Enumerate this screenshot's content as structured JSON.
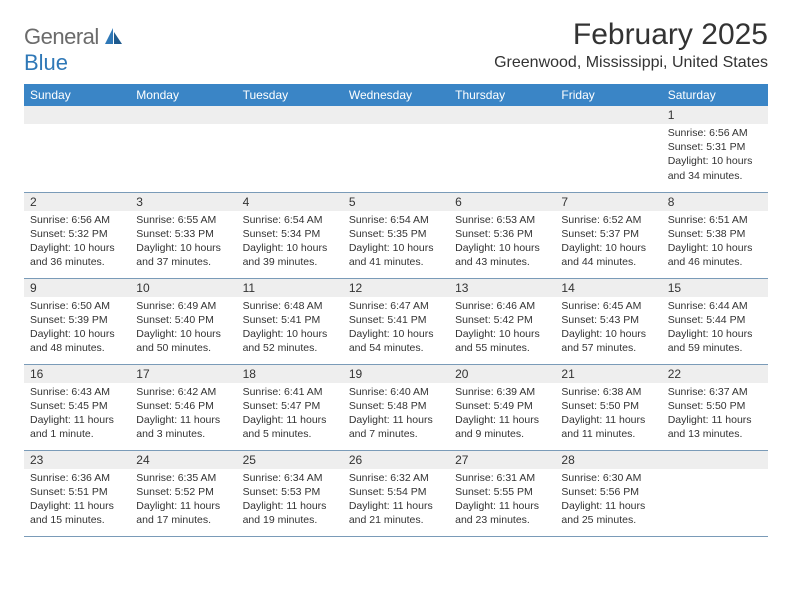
{
  "logo": {
    "part1": "General",
    "part2": "Blue"
  },
  "title": "February 2025",
  "location": "Greenwood, Mississippi, United States",
  "colors": {
    "header_bg": "#3a85c6",
    "header_text": "#ffffff",
    "daynum_bg": "#eeeeee",
    "text": "#333333",
    "week_border": "#7a9bb8",
    "logo_gray": "#6b6b6b",
    "logo_blue": "#2f78b7"
  },
  "day_headers": [
    "Sunday",
    "Monday",
    "Tuesday",
    "Wednesday",
    "Thursday",
    "Friday",
    "Saturday"
  ],
  "weeks": [
    [
      {
        "n": "",
        "sr": "",
        "ss": "",
        "dl": ""
      },
      {
        "n": "",
        "sr": "",
        "ss": "",
        "dl": ""
      },
      {
        "n": "",
        "sr": "",
        "ss": "",
        "dl": ""
      },
      {
        "n": "",
        "sr": "",
        "ss": "",
        "dl": ""
      },
      {
        "n": "",
        "sr": "",
        "ss": "",
        "dl": ""
      },
      {
        "n": "",
        "sr": "",
        "ss": "",
        "dl": ""
      },
      {
        "n": "1",
        "sr": "Sunrise: 6:56 AM",
        "ss": "Sunset: 5:31 PM",
        "dl": "Daylight: 10 hours and 34 minutes."
      }
    ],
    [
      {
        "n": "2",
        "sr": "Sunrise: 6:56 AM",
        "ss": "Sunset: 5:32 PM",
        "dl": "Daylight: 10 hours and 36 minutes."
      },
      {
        "n": "3",
        "sr": "Sunrise: 6:55 AM",
        "ss": "Sunset: 5:33 PM",
        "dl": "Daylight: 10 hours and 37 minutes."
      },
      {
        "n": "4",
        "sr": "Sunrise: 6:54 AM",
        "ss": "Sunset: 5:34 PM",
        "dl": "Daylight: 10 hours and 39 minutes."
      },
      {
        "n": "5",
        "sr": "Sunrise: 6:54 AM",
        "ss": "Sunset: 5:35 PM",
        "dl": "Daylight: 10 hours and 41 minutes."
      },
      {
        "n": "6",
        "sr": "Sunrise: 6:53 AM",
        "ss": "Sunset: 5:36 PM",
        "dl": "Daylight: 10 hours and 43 minutes."
      },
      {
        "n": "7",
        "sr": "Sunrise: 6:52 AM",
        "ss": "Sunset: 5:37 PM",
        "dl": "Daylight: 10 hours and 44 minutes."
      },
      {
        "n": "8",
        "sr": "Sunrise: 6:51 AM",
        "ss": "Sunset: 5:38 PM",
        "dl": "Daylight: 10 hours and 46 minutes."
      }
    ],
    [
      {
        "n": "9",
        "sr": "Sunrise: 6:50 AM",
        "ss": "Sunset: 5:39 PM",
        "dl": "Daylight: 10 hours and 48 minutes."
      },
      {
        "n": "10",
        "sr": "Sunrise: 6:49 AM",
        "ss": "Sunset: 5:40 PM",
        "dl": "Daylight: 10 hours and 50 minutes."
      },
      {
        "n": "11",
        "sr": "Sunrise: 6:48 AM",
        "ss": "Sunset: 5:41 PM",
        "dl": "Daylight: 10 hours and 52 minutes."
      },
      {
        "n": "12",
        "sr": "Sunrise: 6:47 AM",
        "ss": "Sunset: 5:41 PM",
        "dl": "Daylight: 10 hours and 54 minutes."
      },
      {
        "n": "13",
        "sr": "Sunrise: 6:46 AM",
        "ss": "Sunset: 5:42 PM",
        "dl": "Daylight: 10 hours and 55 minutes."
      },
      {
        "n": "14",
        "sr": "Sunrise: 6:45 AM",
        "ss": "Sunset: 5:43 PM",
        "dl": "Daylight: 10 hours and 57 minutes."
      },
      {
        "n": "15",
        "sr": "Sunrise: 6:44 AM",
        "ss": "Sunset: 5:44 PM",
        "dl": "Daylight: 10 hours and 59 minutes."
      }
    ],
    [
      {
        "n": "16",
        "sr": "Sunrise: 6:43 AM",
        "ss": "Sunset: 5:45 PM",
        "dl": "Daylight: 11 hours and 1 minute."
      },
      {
        "n": "17",
        "sr": "Sunrise: 6:42 AM",
        "ss": "Sunset: 5:46 PM",
        "dl": "Daylight: 11 hours and 3 minutes."
      },
      {
        "n": "18",
        "sr": "Sunrise: 6:41 AM",
        "ss": "Sunset: 5:47 PM",
        "dl": "Daylight: 11 hours and 5 minutes."
      },
      {
        "n": "19",
        "sr": "Sunrise: 6:40 AM",
        "ss": "Sunset: 5:48 PM",
        "dl": "Daylight: 11 hours and 7 minutes."
      },
      {
        "n": "20",
        "sr": "Sunrise: 6:39 AM",
        "ss": "Sunset: 5:49 PM",
        "dl": "Daylight: 11 hours and 9 minutes."
      },
      {
        "n": "21",
        "sr": "Sunrise: 6:38 AM",
        "ss": "Sunset: 5:50 PM",
        "dl": "Daylight: 11 hours and 11 minutes."
      },
      {
        "n": "22",
        "sr": "Sunrise: 6:37 AM",
        "ss": "Sunset: 5:50 PM",
        "dl": "Daylight: 11 hours and 13 minutes."
      }
    ],
    [
      {
        "n": "23",
        "sr": "Sunrise: 6:36 AM",
        "ss": "Sunset: 5:51 PM",
        "dl": "Daylight: 11 hours and 15 minutes."
      },
      {
        "n": "24",
        "sr": "Sunrise: 6:35 AM",
        "ss": "Sunset: 5:52 PM",
        "dl": "Daylight: 11 hours and 17 minutes."
      },
      {
        "n": "25",
        "sr": "Sunrise: 6:34 AM",
        "ss": "Sunset: 5:53 PM",
        "dl": "Daylight: 11 hours and 19 minutes."
      },
      {
        "n": "26",
        "sr": "Sunrise: 6:32 AM",
        "ss": "Sunset: 5:54 PM",
        "dl": "Daylight: 11 hours and 21 minutes."
      },
      {
        "n": "27",
        "sr": "Sunrise: 6:31 AM",
        "ss": "Sunset: 5:55 PM",
        "dl": "Daylight: 11 hours and 23 minutes."
      },
      {
        "n": "28",
        "sr": "Sunrise: 6:30 AM",
        "ss": "Sunset: 5:56 PM",
        "dl": "Daylight: 11 hours and 25 minutes."
      },
      {
        "n": "",
        "sr": "",
        "ss": "",
        "dl": ""
      }
    ]
  ]
}
